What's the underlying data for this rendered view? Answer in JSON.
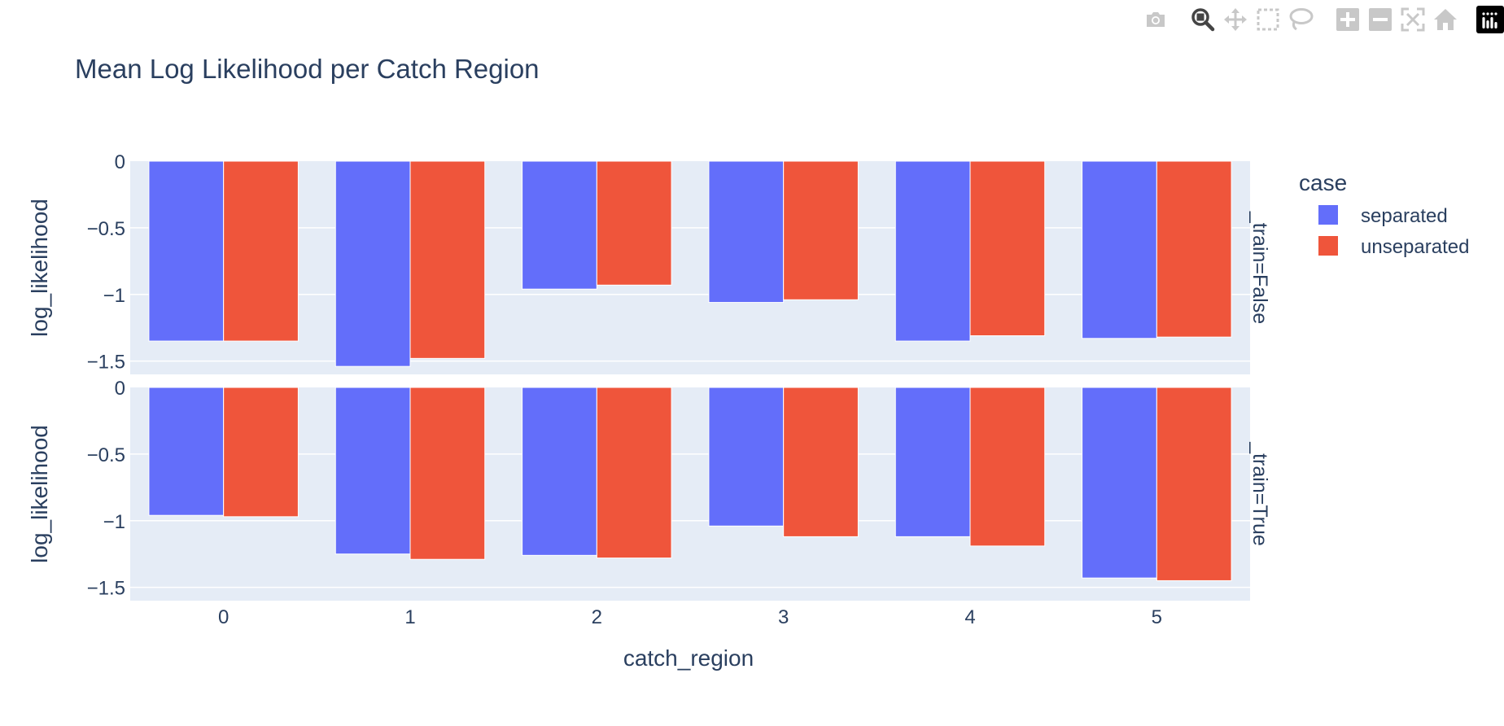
{
  "modebar": {
    "buttons": [
      {
        "name": "download-plot-button",
        "icon": "camera-icon"
      },
      {
        "name": "zoom-button",
        "icon": "zoom-icon",
        "active": true
      },
      {
        "name": "pan-button",
        "icon": "pan-icon"
      },
      {
        "name": "box-select-button",
        "icon": "box-select-icon"
      },
      {
        "name": "lasso-select-button",
        "icon": "lasso-icon"
      },
      {
        "name": "zoom-in-button",
        "icon": "zoom-in-icon"
      },
      {
        "name": "zoom-out-button",
        "icon": "zoom-out-icon"
      },
      {
        "name": "autoscale-button",
        "icon": "autoscale-icon"
      },
      {
        "name": "reset-axes-button",
        "icon": "home-icon"
      }
    ],
    "inactive_color": "#c8c8c8",
    "active_color": "#444444"
  },
  "chart_data": {
    "type": "bar",
    "title": "Mean Log Likelihood per Catch Region",
    "xlabel": "catch_region",
    "ylabel": "log_likelihood",
    "categories": [
      "0",
      "1",
      "2",
      "3",
      "4",
      "5"
    ],
    "ylim": [
      -1.6,
      0
    ],
    "yticks": [
      0,
      -0.5,
      -1,
      -1.5
    ],
    "ytick_labels": [
      "0",
      "−0.5",
      "−1",
      "−1.5"
    ],
    "grid": true,
    "legend": {
      "title": "case",
      "placement": "right"
    },
    "colors": {
      "separated": "#636efa",
      "unseparated": "#ef553b",
      "plot_bg": "#e5ecf6",
      "grid": "#ffffff",
      "text": "#2a3f5f"
    },
    "facets": [
      {
        "label": "_train=False",
        "series": [
          {
            "name": "separated",
            "values": [
              -1.35,
              -1.54,
              -0.96,
              -1.06,
              -1.35,
              -1.33
            ]
          },
          {
            "name": "unseparated",
            "values": [
              -1.35,
              -1.48,
              -0.93,
              -1.04,
              -1.31,
              -1.32
            ]
          }
        ]
      },
      {
        "label": "_train=True",
        "series": [
          {
            "name": "separated",
            "values": [
              -0.96,
              -1.25,
              -1.26,
              -1.04,
              -1.12,
              -1.43
            ]
          },
          {
            "name": "unseparated",
            "values": [
              -0.97,
              -1.29,
              -1.28,
              -1.12,
              -1.19,
              -1.45
            ]
          }
        ]
      }
    ]
  }
}
